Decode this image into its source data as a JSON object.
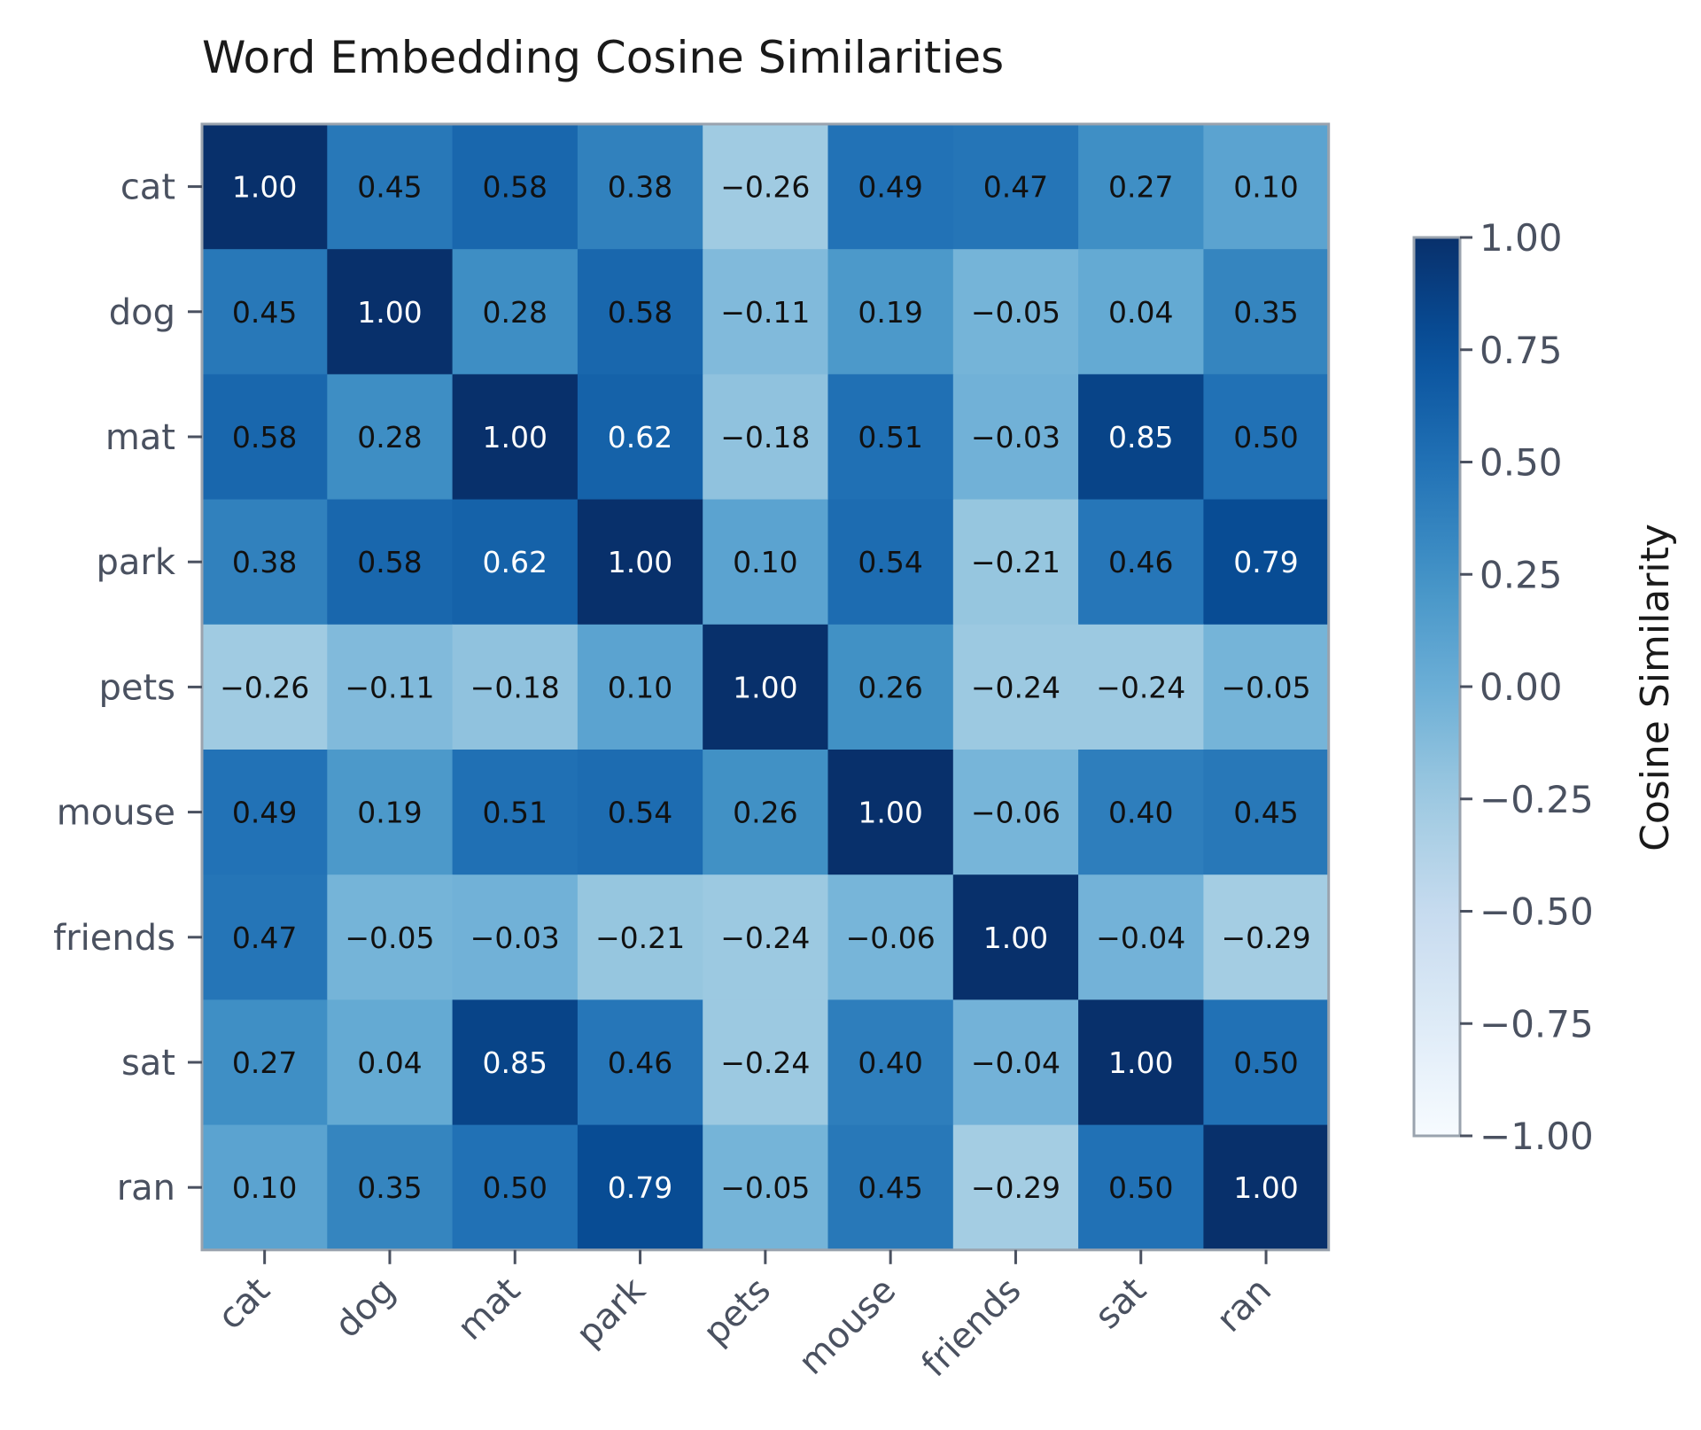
{
  "chart_data": {
    "type": "heatmap",
    "title": "Word Embedding Cosine Similarities",
    "row_labels": [
      "cat",
      "dog",
      "mat",
      "park",
      "pets",
      "mouse",
      "friends",
      "sat",
      "ran"
    ],
    "col_labels": [
      "cat",
      "dog",
      "mat",
      "park",
      "pets",
      "mouse",
      "friends",
      "sat",
      "ran"
    ],
    "values": [
      [
        1.0,
        0.45,
        0.58,
        0.38,
        -0.26,
        0.49,
        0.47,
        0.27,
        0.1
      ],
      [
        0.45,
        1.0,
        0.28,
        0.58,
        -0.11,
        0.19,
        -0.05,
        0.04,
        0.35
      ],
      [
        0.58,
        0.28,
        1.0,
        0.62,
        -0.18,
        0.51,
        -0.03,
        0.85,
        0.5
      ],
      [
        0.38,
        0.58,
        0.62,
        1.0,
        0.1,
        0.54,
        -0.21,
        0.46,
        0.79
      ],
      [
        -0.26,
        -0.11,
        -0.18,
        0.1,
        1.0,
        0.26,
        -0.24,
        -0.24,
        -0.05
      ],
      [
        0.49,
        0.19,
        0.51,
        0.54,
        0.26,
        1.0,
        -0.06,
        0.4,
        0.45
      ],
      [
        0.47,
        -0.05,
        -0.03,
        -0.21,
        -0.24,
        -0.06,
        1.0,
        -0.04,
        -0.29
      ],
      [
        0.27,
        0.04,
        0.85,
        0.46,
        -0.24,
        0.4,
        -0.04,
        1.0,
        0.5
      ],
      [
        0.1,
        0.35,
        0.5,
        0.79,
        -0.05,
        0.45,
        -0.29,
        0.5,
        1.0
      ]
    ],
    "value_format": "2 decimals",
    "colormap": "Blues",
    "vmin": -1.0,
    "vmax": 1.0,
    "colorbar": {
      "label": "Cosine Similarity",
      "ticks": [
        1.0,
        0.75,
        0.5,
        0.25,
        0.0,
        -0.25,
        -0.5,
        -0.75,
        -1.0
      ],
      "tick_labels": [
        "1.00",
        "0.75",
        "0.50",
        "0.25",
        "0.00",
        "−0.25",
        "−0.50",
        "−0.75",
        "−1.00"
      ],
      "position": "right"
    },
    "x_tick_rotation": 45,
    "grid": false
  }
}
